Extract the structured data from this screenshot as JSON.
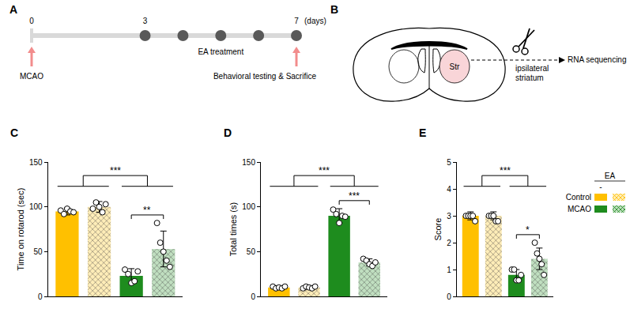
{
  "chart_data": [
    {
      "panel": "C",
      "type": "bar",
      "y_label": "Time on rotarod (sec)",
      "categories": [
        null,
        null,
        null,
        null
      ],
      "values": [
        95,
        100,
        23,
        53
      ],
      "errors": [
        4,
        6,
        8,
        20
      ],
      "points": [
        [
          96,
          92,
          98,
          95,
          94
        ],
        [
          98,
          105,
          100,
          94,
          103
        ],
        [
          30,
          25,
          15,
          17,
          28
        ],
        [
          82,
          60,
          50,
          40,
          33
        ]
      ],
      "colors": [
        "#FFC000",
        "#FFC000",
        "#1E8C1E",
        "#1E8C1E"
      ],
      "marker": "circle",
      "ylim": [
        0,
        150
      ],
      "yticks": [
        0,
        50,
        100,
        150
      ],
      "grid": false,
      "tick_labels": "y",
      "significance": [
        {
          "between": [
            [
              0,
              1
            ],
            [
              2,
              3
            ]
          ],
          "label": "***"
        },
        {
          "between": [
            [
              2
            ],
            [
              3
            ]
          ],
          "label": "**"
        }
      ]
    },
    {
      "panel": "D",
      "type": "bar",
      "y_label": "Total times (s)",
      "categories": [
        null,
        null,
        null,
        null
      ],
      "values": [
        10,
        10,
        90,
        38
      ],
      "errors": [
        2,
        2,
        8,
        4
      ],
      "points": [
        [
          11,
          9,
          10,
          9,
          11
        ],
        [
          9,
          11,
          10,
          9,
          11
        ],
        [
          97,
          92,
          82,
          90,
          89
        ],
        [
          42,
          40,
          36,
          34,
          38
        ]
      ],
      "colors": [
        "#FFC000",
        "#FFC000",
        "#1E8C1E",
        "#1E8C1E"
      ],
      "marker": "circle",
      "ylim": [
        0,
        150
      ],
      "yticks": [
        0,
        50,
        100,
        150
      ],
      "grid": false,
      "tick_labels": "y",
      "significance": [
        {
          "between": [
            [
              0,
              1
            ],
            [
              2,
              3
            ]
          ],
          "label": "***"
        },
        {
          "between": [
            [
              2
            ],
            [
              3
            ]
          ],
          "label": "***"
        }
      ]
    },
    {
      "panel": "E",
      "type": "bar",
      "y_label": "Score",
      "categories": [
        null,
        null,
        null,
        null
      ],
      "values": [
        3,
        3,
        0.8,
        1.4
      ],
      "errors": [
        0.15,
        0.15,
        0.2,
        0.4
      ],
      "points": [
        [
          3,
          3,
          3,
          3,
          2.8
        ],
        [
          3,
          3,
          3,
          2.8,
          2.8
        ],
        [
          1,
          1,
          0.6,
          0.6,
          0.8
        ],
        [
          2,
          1.6,
          1.4,
          1.2,
          0.8
        ]
      ],
      "colors": [
        "#FFC000",
        "#FFC000",
        "#1E8C1E",
        "#1E8C1E"
      ],
      "marker": "circle",
      "ylim": [
        0,
        5
      ],
      "yticks": [
        0,
        1,
        2,
        3,
        4,
        5
      ],
      "grid": false,
      "tick_labels": "y",
      "significance": [
        {
          "between": [
            [
              0,
              1
            ],
            [
              2,
              3
            ]
          ],
          "label": "***"
        },
        {
          "between": [
            [
              2
            ],
            [
              3
            ]
          ],
          "label": "*"
        }
      ]
    }
  ],
  "panel_a": {
    "label": "A",
    "labeled_days": [
      0,
      3,
      7
    ],
    "unit": "(days)",
    "treatment": "EA treatment",
    "treatment_days": [
      3,
      4,
      5,
      6,
      7
    ],
    "events": [
      {
        "day": 0,
        "label": "MCAO"
      },
      {
        "day": 7,
        "label": "Behavioral testing & Sacrifice"
      }
    ]
  },
  "panel_b": {
    "label": "B",
    "region": "Str",
    "sample": [
      "ipsilateral",
      "striatum"
    ],
    "output": "RNA sequencing"
  },
  "legend_box": {
    "title": "EA",
    "solid_label": "-",
    "rows": [
      {
        "name": "Control",
        "color": "#FFC000"
      },
      {
        "name": "MCAO",
        "color": "#1E8C1E"
      }
    ]
  }
}
